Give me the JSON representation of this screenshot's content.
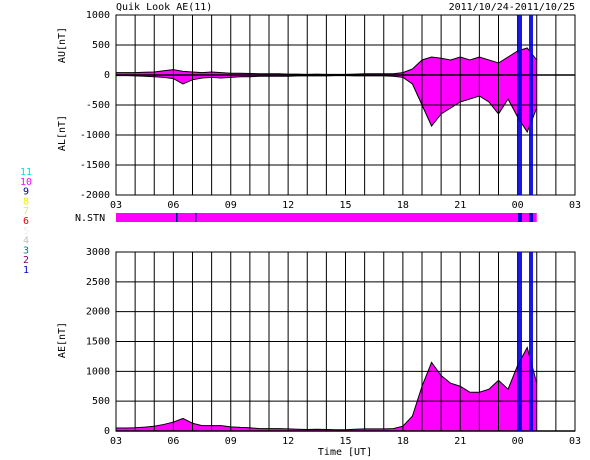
{
  "chart_data": [
    {
      "type": "area",
      "title": "Quik Look AE(11)",
      "subtitle": "2011/10/24-2011/10/25",
      "ylabels": [
        "AU[nT]",
        "AL[nT]"
      ],
      "x": [
        0,
        0.5,
        1,
        1.5,
        2,
        2.5,
        3,
        3.5,
        4,
        4.5,
        5,
        5.5,
        6,
        6.5,
        7,
        7.5,
        8,
        8.5,
        9,
        9.5,
        10,
        10.5,
        11,
        11.5,
        12,
        12.5,
        13,
        13.5,
        14,
        14.5,
        15,
        15.5,
        16,
        16.5,
        17,
        17.5,
        18,
        18.5,
        19,
        19.5,
        20,
        20.5,
        21,
        21.5,
        22
      ],
      "series": [
        {
          "name": "AU",
          "color": "#ff00ff",
          "values": [
            40,
            40,
            40,
            45,
            50,
            70,
            90,
            60,
            50,
            40,
            50,
            40,
            30,
            30,
            25,
            20,
            20,
            20,
            15,
            15,
            10,
            15,
            10,
            10,
            10,
            15,
            20,
            20,
            20,
            20,
            40,
            100,
            250,
            300,
            280,
            250,
            300,
            250,
            300,
            250,
            200,
            300,
            400,
            450,
            250
          ]
        },
        {
          "name": "AL",
          "color": "#ff00ff",
          "values": [
            -10,
            -10,
            -15,
            -20,
            -30,
            -40,
            -60,
            -150,
            -80,
            -50,
            -40,
            -50,
            -40,
            -30,
            -30,
            -20,
            -20,
            -20,
            -20,
            -15,
            -15,
            -15,
            -15,
            -10,
            -10,
            -15,
            -15,
            -15,
            -15,
            -20,
            -40,
            -150,
            -500,
            -850,
            -650,
            -550,
            -450,
            -400,
            -350,
            -450,
            -650,
            -400,
            -700,
            -950,
            -550
          ]
        }
      ],
      "xlim": [
        0,
        24
      ],
      "xticks": [
        {
          "value": 0,
          "label": "03"
        },
        {
          "value": 3,
          "label": "06"
        },
        {
          "value": 6,
          "label": "09"
        },
        {
          "value": 9,
          "label": "12"
        },
        {
          "value": 12,
          "label": "15"
        },
        {
          "value": 15,
          "label": "18"
        },
        {
          "value": 18,
          "label": "21"
        },
        {
          "value": 21,
          "label": "00"
        },
        {
          "value": 24,
          "label": "03"
        }
      ],
      "xminorticks": [
        0,
        1,
        2,
        3,
        4,
        5,
        6,
        7,
        8,
        9,
        10,
        11,
        12,
        13,
        14,
        15,
        16,
        17,
        18,
        19,
        20,
        21,
        22,
        23,
        24
      ],
      "ylim": [
        -2000,
        1000
      ],
      "yticks": [
        -2000,
        -1500,
        -1000,
        -500,
        0,
        500,
        1000
      ],
      "grid": true
    },
    {
      "type": "area",
      "xlabel": "Time [UT]",
      "ylabel": "AE[nT]",
      "x": [
        0,
        0.5,
        1,
        1.5,
        2,
        2.5,
        3,
        3.5,
        4,
        4.5,
        5,
        5.5,
        6,
        6.5,
        7,
        7.5,
        8,
        8.5,
        9,
        9.5,
        10,
        10.5,
        11,
        11.5,
        12,
        12.5,
        13,
        13.5,
        14,
        14.5,
        15,
        15.5,
        16,
        16.5,
        17,
        17.5,
        18,
        18.5,
        19,
        19.5,
        20,
        20.5,
        21,
        21.5,
        22
      ],
      "series": [
        {
          "name": "AE",
          "color": "#ff00ff",
          "values": [
            50,
            50,
            55,
            65,
            80,
            110,
            150,
            210,
            130,
            90,
            90,
            90,
            70,
            60,
            55,
            40,
            40,
            40,
            35,
            30,
            25,
            30,
            25,
            20,
            20,
            30,
            35,
            35,
            35,
            40,
            80,
            250,
            750,
            1150,
            930,
            800,
            750,
            650,
            650,
            700,
            850,
            700,
            1100,
            1400,
            800
          ]
        }
      ],
      "xlim": [
        0,
        24
      ],
      "xticks": [
        {
          "value": 0,
          "label": "03"
        },
        {
          "value": 3,
          "label": "06"
        },
        {
          "value": 6,
          "label": "09"
        },
        {
          "value": 9,
          "label": "12"
        },
        {
          "value": 12,
          "label": "15"
        },
        {
          "value": 15,
          "label": "18"
        },
        {
          "value": 18,
          "label": "21"
        },
        {
          "value": 21,
          "label": "00"
        },
        {
          "value": 24,
          "label": "03"
        }
      ],
      "xminorticks": [
        0,
        1,
        2,
        3,
        4,
        5,
        6,
        7,
        8,
        9,
        10,
        11,
        12,
        13,
        14,
        15,
        16,
        17,
        18,
        19,
        20,
        21,
        22,
        23,
        24
      ],
      "ylim": [
        0,
        3000
      ],
      "yticks": [
        0,
        500,
        1000,
        1500,
        2000,
        2500,
        3000
      ],
      "grid": true
    }
  ],
  "station_label": "N.STN",
  "station_legend": [
    {
      "label": "11",
      "color": "#00e0e0"
    },
    {
      "label": "10",
      "color": "#ff00ff"
    },
    {
      "label": "9",
      "color": "#000090"
    },
    {
      "label": "8",
      "color": "#f0f000"
    },
    {
      "label": "7",
      "color": "#c8f080"
    },
    {
      "label": "6",
      "color": "#e00000"
    },
    {
      "label": "5",
      "color": "#f0f0f0"
    },
    {
      "label": "4",
      "color": "#c0c0c0"
    },
    {
      "label": "3",
      "color": "#008080"
    },
    {
      "label": "2",
      "color": "#800080"
    },
    {
      "label": "1",
      "color": "#0000e0"
    }
  ]
}
